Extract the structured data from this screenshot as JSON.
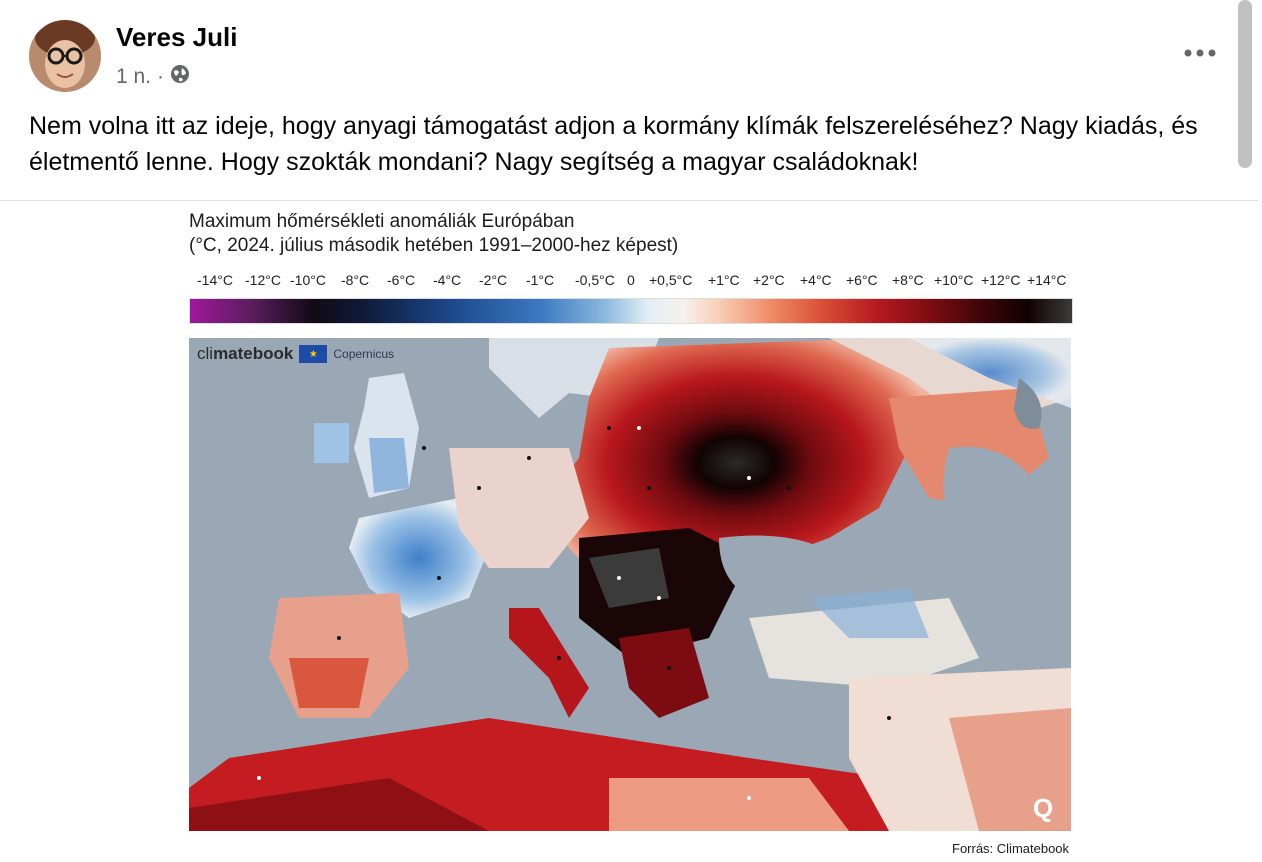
{
  "post": {
    "author": "Veres Juli",
    "time": "1 n.",
    "separator": "·",
    "text": "Nem volna itt az ideje, hogy anyagi támogatást adjon a kormány klímák felszereléséhez? Nagy kiadás, és életmentő lenne. Hogy szokták mondani? Nagy segítség a magyar családoknak!"
  },
  "image": {
    "title_line1": "Maximum hőmérsékleti anomáliák Európában",
    "title_line2": "(°C, 2024. július második hetében 1991–2000-hez képest)",
    "scale_labels": [
      "-14°C",
      "-12°C",
      "-10°C",
      "-8°C",
      "-6°C",
      "-4°C",
      "-2°C",
      "-1°C",
      "-0,5°C",
      "0",
      "+0,5°C",
      "+1°C",
      "+2°C",
      "+4°C",
      "+6°C",
      "+8°C",
      "+10°C",
      "+12°C",
      "+14°C"
    ],
    "brand_prefix": "cli",
    "brand_mid": "mate",
    "brand_suffix": "book",
    "copernicus_label": "Copernicus",
    "source": "Forrás: Climatebook"
  },
  "icons": [
    "globe-icon",
    "more-options-icon"
  ],
  "colors": {
    "text_primary": "#050505",
    "text_secondary": "#65676b",
    "sea": "#9aa8b6",
    "hot_dark": "#1a0204",
    "hot_red": "#c01a1f",
    "cool_blue": "#4d8cd0"
  }
}
